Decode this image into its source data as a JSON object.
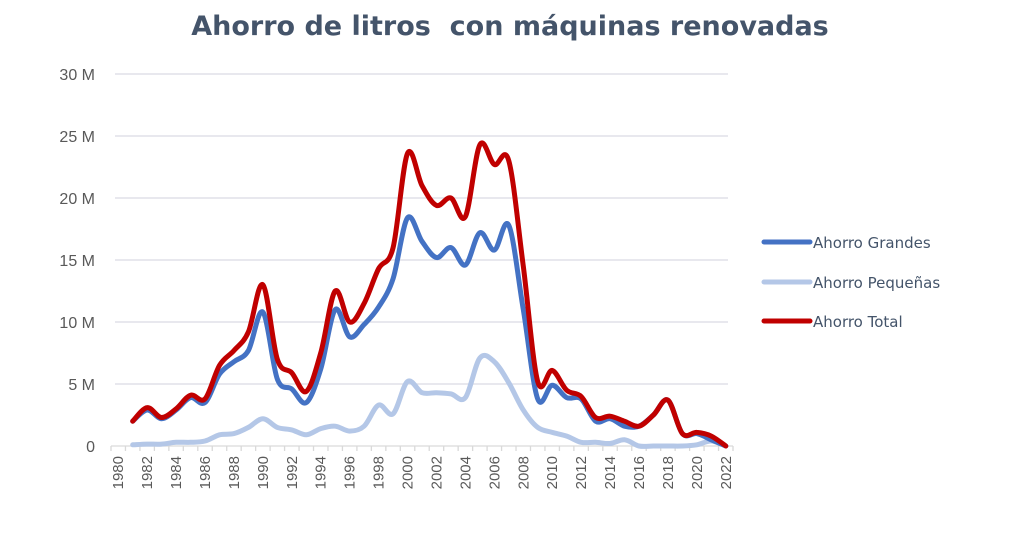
{
  "chart_data": {
    "type": "line",
    "title": "Ahorro de litros  con máquinas renovadas",
    "xlabel": "",
    "ylabel": "",
    "ylim": [
      0,
      30000000
    ],
    "yticks": [
      0,
      5000000,
      10000000,
      15000000,
      20000000,
      25000000,
      30000000
    ],
    "ytick_labels": [
      "0",
      "5 M",
      "10 M",
      "15 M",
      "20 M",
      "25 M",
      "30 M"
    ],
    "x_categories": [
      "1980",
      "1981",
      "1982",
      "1983",
      "1984",
      "1985",
      "1986",
      "1987",
      "1988",
      "1989",
      "1990",
      "1991",
      "1992",
      "1993",
      "1994",
      "1995",
      "1996",
      "1997",
      "1998",
      "1999",
      "2000",
      "2001",
      "2002",
      "2003",
      "2004",
      "2005",
      "2006",
      "2007",
      "2008",
      "2009",
      "2010",
      "2011",
      "2012",
      "2013",
      "2014",
      "2015",
      "2016",
      "2017",
      "2018",
      "2019",
      "2020",
      "2021",
      "2022"
    ],
    "xtick_labels": [
      "1980",
      "1982",
      "1984",
      "1986",
      "1988",
      "1990",
      "1992",
      "1994",
      "1996",
      "1998",
      "2000",
      "2002",
      "2004",
      "2006",
      "2008",
      "2010",
      "2012",
      "2014",
      "2016",
      "2018",
      "2020",
      "2022"
    ],
    "grid": true,
    "legend_position": "right",
    "series": [
      {
        "name": "Ahorro Grandes",
        "color": "#4472c4",
        "x": [
          1981,
          1982,
          1983,
          1984,
          1985,
          1986,
          1987,
          1988,
          1989,
          1990,
          1991,
          1992,
          1993,
          1994,
          1995,
          1996,
          1997,
          1998,
          1999,
          2000,
          2001,
          2002,
          2003,
          2004,
          2005,
          2006,
          2007,
          2008,
          2009,
          2010,
          2011,
          2012,
          2013,
          2014,
          2015,
          2016,
          2017,
          2018,
          2019,
          2020,
          2021,
          2022
        ],
        "values": [
          2000000,
          2900000,
          2200000,
          2900000,
          3900000,
          3500000,
          5800000,
          6800000,
          7700000,
          10800000,
          5400000,
          4600000,
          3500000,
          6200000,
          11000000,
          8800000,
          9800000,
          11200000,
          13500000,
          18400000,
          16500000,
          15200000,
          16000000,
          14600000,
          17200000,
          15800000,
          17800000,
          11000000,
          3800000,
          4900000,
          3900000,
          3800000,
          2000000,
          2200000,
          1600000,
          1600000,
          2500000,
          3700000,
          1000000,
          1000000,
          500000,
          0
        ]
      },
      {
        "name": "Ahorro Pequeñas",
        "color": "#b4c7e7",
        "x": [
          1981,
          1982,
          1983,
          1984,
          1985,
          1986,
          1987,
          1988,
          1989,
          1990,
          1991,
          1992,
          1993,
          1994,
          1995,
          1996,
          1997,
          1998,
          1999,
          2000,
          2001,
          2002,
          2003,
          2004,
          2005,
          2006,
          2007,
          2008,
          2009,
          2010,
          2011,
          2012,
          2013,
          2014,
          2015,
          2016,
          2017,
          2018,
          2019,
          2020,
          2021,
          2022
        ],
        "values": [
          100000,
          150000,
          150000,
          300000,
          300000,
          400000,
          900000,
          1000000,
          1500000,
          2200000,
          1500000,
          1300000,
          900000,
          1400000,
          1600000,
          1200000,
          1600000,
          3300000,
          2600000,
          5200000,
          4300000,
          4300000,
          4200000,
          3900000,
          7100000,
          6800000,
          5100000,
          2900000,
          1500000,
          1100000,
          800000,
          300000,
          300000,
          200000,
          500000,
          0,
          0,
          0,
          0,
          100000,
          400000,
          0
        ]
      },
      {
        "name": "Ahorro Total",
        "color": "#c00000",
        "x": [
          1981,
          1982,
          1983,
          1984,
          1985,
          1986,
          1987,
          1988,
          1989,
          1990,
          1991,
          1992,
          1993,
          1994,
          1995,
          1996,
          1997,
          1998,
          1999,
          2000,
          2001,
          2002,
          2003,
          2004,
          2005,
          2006,
          2007,
          2008,
          2009,
          2010,
          2011,
          2012,
          2013,
          2014,
          2015,
          2016,
          2017,
          2018,
          2019,
          2020,
          2021,
          2022
        ],
        "values": [
          2000000,
          3100000,
          2300000,
          3000000,
          4100000,
          3800000,
          6500000,
          7700000,
          9200000,
          13000000,
          7000000,
          5900000,
          4400000,
          7500000,
          12500000,
          10000000,
          11500000,
          14300000,
          16000000,
          23600000,
          21000000,
          19400000,
          20000000,
          18500000,
          24300000,
          22700000,
          23000000,
          14500000,
          5200000,
          6100000,
          4500000,
          4000000,
          2300000,
          2400000,
          2000000,
          1600000,
          2500000,
          3700000,
          1000000,
          1100000,
          800000,
          0
        ]
      }
    ]
  }
}
